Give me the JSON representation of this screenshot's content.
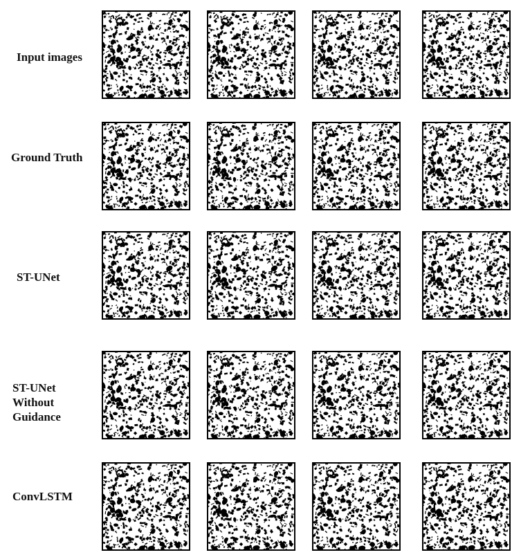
{
  "figure": {
    "rows": [
      {
        "label": "Input images"
      },
      {
        "label": "Ground Truth"
      },
      {
        "label": "ST-UNet"
      },
      {
        "label": "ST-UNet\nWithout\nGuidance"
      },
      {
        "label": "ConvLSTM"
      }
    ],
    "columns": 4,
    "panel_style": "binary-microstructure",
    "colors": {
      "foreground": "#000000",
      "background": "#ffffff"
    }
  }
}
